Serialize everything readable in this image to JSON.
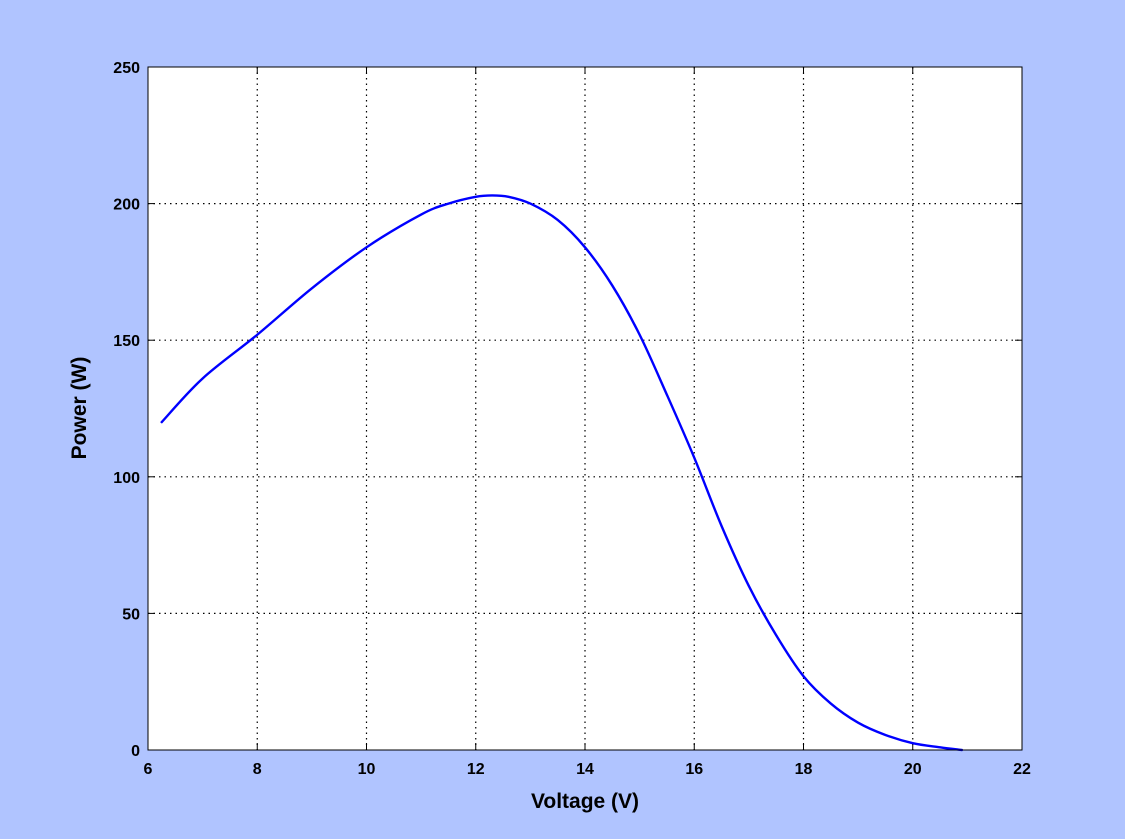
{
  "chart_data": {
    "type": "line",
    "title": "",
    "xlabel": "Voltage (V)",
    "ylabel": "Power (W)",
    "xlim": [
      6,
      22
    ],
    "ylim": [
      0,
      250
    ],
    "xticks": [
      6,
      8,
      10,
      12,
      14,
      16,
      18,
      20,
      22
    ],
    "yticks": [
      0,
      50,
      100,
      150,
      200,
      250
    ],
    "grid": true,
    "line_color": "#0000ff",
    "background_color": "#b0c4ff",
    "plot_background": "#ffffff",
    "series": [
      {
        "x": [
          6.25,
          7.0,
          8.0,
          9.0,
          10.0,
          11.0,
          11.5,
          12.0,
          12.3,
          12.6,
          13.0,
          13.5,
          14.0,
          14.5,
          15.0,
          15.5,
          16.0,
          16.5,
          17.0,
          17.5,
          18.0,
          18.5,
          19.0,
          19.5,
          20.0,
          20.5,
          20.9
        ],
        "y": [
          120,
          136,
          152,
          169,
          184,
          196,
          200,
          202.5,
          203,
          202.5,
          200,
          194,
          184,
          170,
          152,
          130,
          107,
          82,
          60,
          42,
          27,
          17,
          10,
          5.5,
          2.5,
          1,
          0
        ]
      }
    ]
  }
}
